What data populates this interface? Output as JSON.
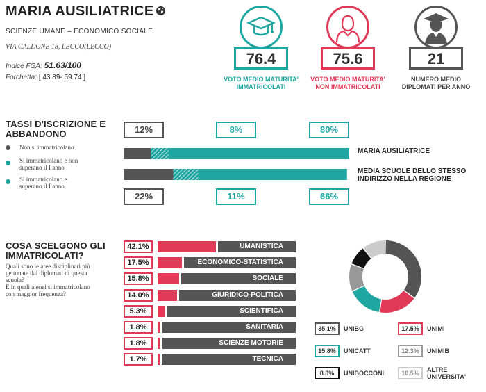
{
  "school": {
    "name": "MARIA AUSILIATRICE",
    "track": "SCIENZE UMANE – ECONOMICO SOCIALE",
    "address": "VIA CALDONE 18, LECCO(LECCO)",
    "fga_label": "Indice FGA:",
    "fga_value": "51.63/100",
    "forchetta_label": "Forchetta:",
    "forchetta_value": "[ 43.89- 59.74 ]",
    "icon": "globe-icon"
  },
  "stats": [
    {
      "value": "76.4",
      "label_line1": "VOTO MEDIO MATURITA'",
      "label_line2": "IMMATRICOLATI",
      "color": "#1ea6a0",
      "icon": "graduation-cap-icon"
    },
    {
      "value": "75.6",
      "label_line1": "VOTO MEDIO MATURITA'",
      "label_line2": "NON IMMATRICOLATI",
      "color": "#e03a58",
      "icon": "person-icon"
    },
    {
      "value": "21",
      "label_line1": "NUMERO MEDIO",
      "label_line2": "DIPLOMATI PER ANNO",
      "color": "#555555",
      "icon": "graduate-icon"
    }
  ],
  "enrollment": {
    "title_line1": "TASSI D'ISCRIZIONE E",
    "title_line2": "ABBANDONO",
    "legend": [
      {
        "text_line1": "Non si immatricolano",
        "text_line2": "",
        "color": "#555555"
      },
      {
        "text_line1": "Si immatricolano e non",
        "text_line2": "superano il I anno",
        "color": "#1ea6a0"
      },
      {
        "text_line1": "Si immatricolano e",
        "text_line2": "superano il I anno",
        "color": "#1ea6a0"
      }
    ],
    "school_row": {
      "pcts": [
        "12%",
        "8%",
        "80%"
      ],
      "values": [
        12,
        8,
        80
      ],
      "label": "MARIA AUSILIATRICE"
    },
    "region_row": {
      "pcts": [
        "22%",
        "11%",
        "66%"
      ],
      "values": [
        22,
        11,
        66
      ],
      "label_line1": "MEDIA SCUOLE DELLO STESSO",
      "label_line2": "INDIRIZZO NELLA REGIONE"
    }
  },
  "choices": {
    "title_line1": "COSA SCELGONO GLI",
    "title_line2": "IMMATRICOLATI?",
    "question1_line1": "Quali sono le aree disciplinari più",
    "question1_line2": "gettonate dai diplomati di questa",
    "question1_line3": "scuola?",
    "question2_line1": "E in quali atenei si immatricolano",
    "question2_line2": "con maggior frequenza?",
    "areas": [
      {
        "pct": "42.1%",
        "value": 42.1,
        "label": "UMANISTICA"
      },
      {
        "pct": "17.5%",
        "value": 17.5,
        "label": "ECONOMICO-STATISTICA"
      },
      {
        "pct": "15.8%",
        "value": 15.8,
        "label": "SOCIALE"
      },
      {
        "pct": "14.0%",
        "value": 14.0,
        "label": "GIURIDICO-POLITICA"
      },
      {
        "pct": "5.3%",
        "value": 5.3,
        "label": "SCIENTIFICA"
      },
      {
        "pct": "1.8%",
        "value": 1.8,
        "label": "SANITARIA"
      },
      {
        "pct": "1.8%",
        "value": 1.8,
        "label": "SCIENZE MOTORIE"
      },
      {
        "pct": "1.7%",
        "value": 1.7,
        "label": "TECNICA"
      }
    ],
    "universities": [
      {
        "pct": "35.1%",
        "value": 35.1,
        "label": "UNIBG",
        "color": "#555555",
        "label2": ""
      },
      {
        "pct": "17.5%",
        "value": 17.5,
        "label": "UNIMI",
        "color": "#e03a58",
        "label2": ""
      },
      {
        "pct": "15.8%",
        "value": 15.8,
        "label": "UNICATT",
        "color": "#1ea6a0",
        "label2": ""
      },
      {
        "pct": "12.3%",
        "value": 12.3,
        "label": "UNIMIB",
        "color": "#999999",
        "label2": ""
      },
      {
        "pct": "8.8%",
        "value": 8.8,
        "label": "UNIBOCCONI",
        "color": "#111111",
        "label2": ""
      },
      {
        "pct": "10.5%",
        "value": 10.5,
        "label": "ALTRE",
        "color": "#cccccc",
        "label2": "UNIVERSITA'"
      }
    ]
  },
  "chart_data": [
    {
      "type": "bar",
      "categories": [
        "MARIA AUSILIATRICE",
        "MEDIA SCUOLE DELLO STESSO INDIRIZZO NELLA REGIONE"
      ],
      "series": [
        {
          "name": "Non si immatricolano",
          "values": [
            12,
            22
          ]
        },
        {
          "name": "Si immatricolano e non superano il I anno",
          "values": [
            8,
            11
          ]
        },
        {
          "name": "Si immatricolano e superano il I anno",
          "values": [
            80,
            66
          ]
        }
      ]
    },
    {
      "type": "bar",
      "categories": [
        "UMANISTICA",
        "ECONOMICO-STATISTICA",
        "SOCIALE",
        "GIURIDICO-POLITICA",
        "SCIENTIFICA",
        "SANITARIA",
        "SCIENZE MOTORIE",
        "TECNICA"
      ],
      "values": [
        42.1,
        17.5,
        15.8,
        14.0,
        5.3,
        1.8,
        1.8,
        1.7
      ]
    },
    {
      "type": "pie",
      "categories": [
        "UNIBG",
        "UNIMI",
        "UNICATT",
        "UNIMIB",
        "UNIBOCCONI",
        "ALTRE UNIVERSITA'"
      ],
      "values": [
        35.1,
        17.5,
        15.8,
        12.3,
        8.8,
        10.5
      ]
    }
  ]
}
